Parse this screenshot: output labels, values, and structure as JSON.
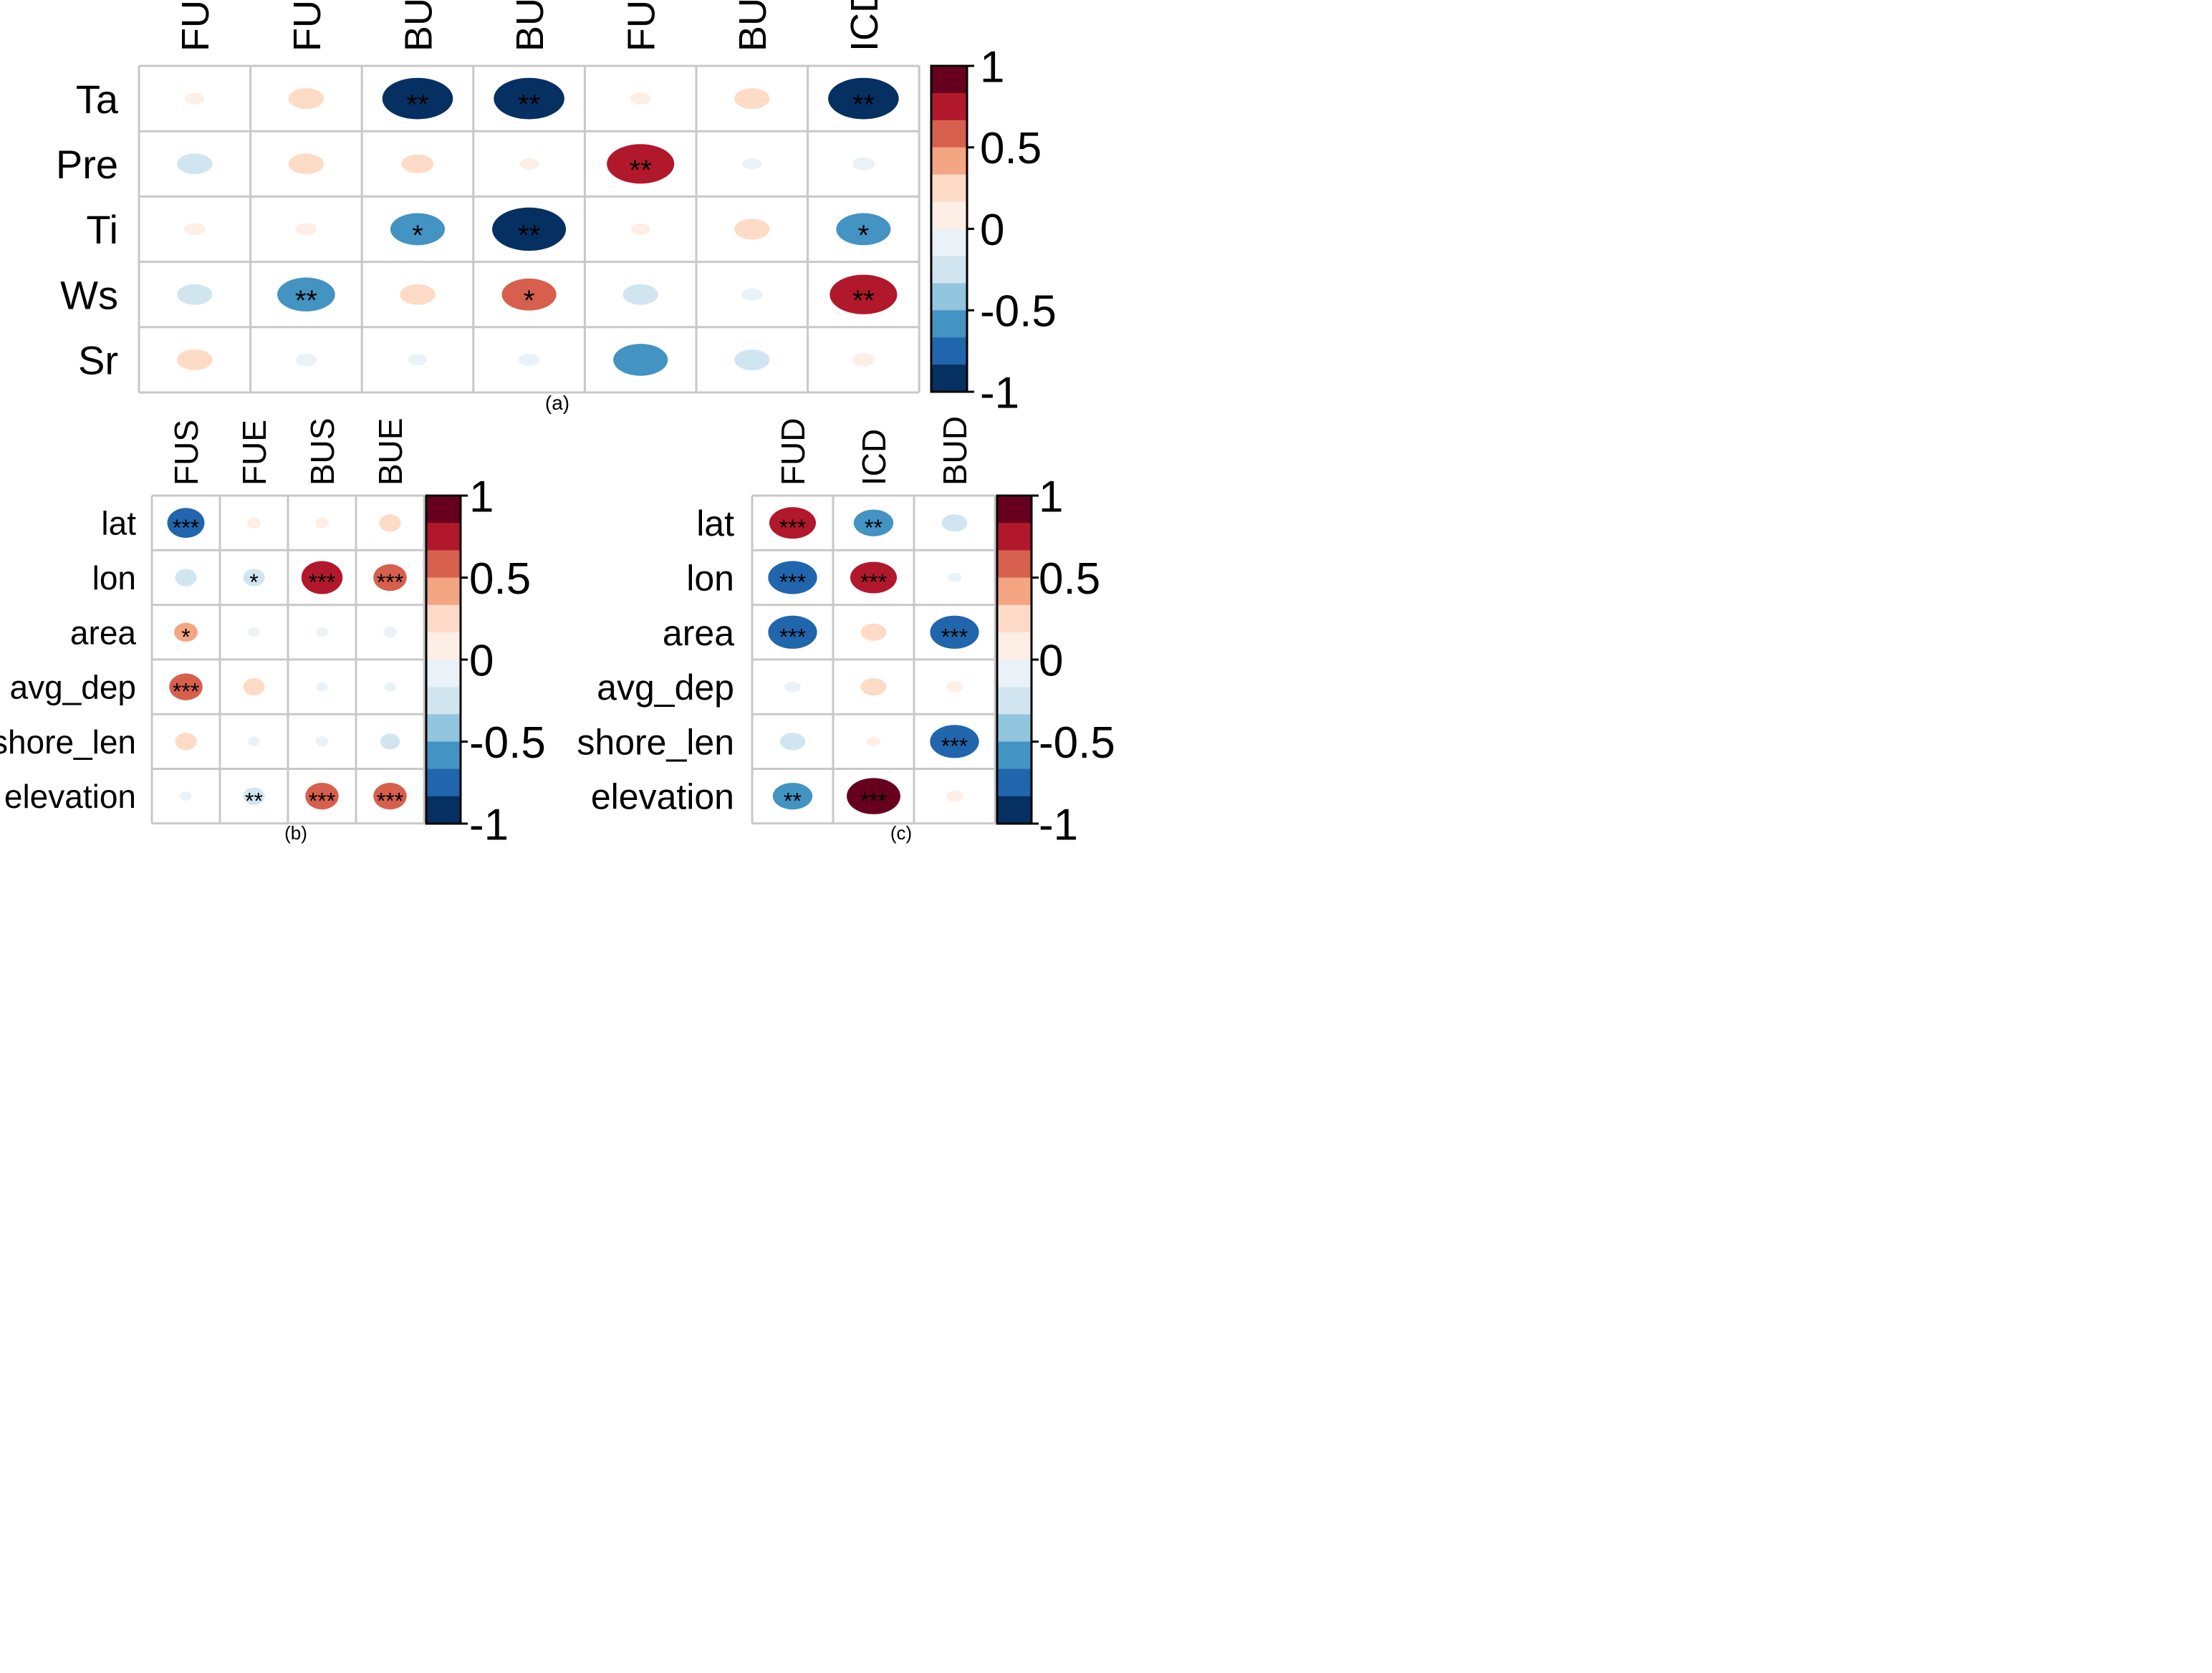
{
  "chart_data": [
    {
      "type": "heatmap",
      "subtype": "correlation-ellipse",
      "caption": "(a)",
      "columns": [
        "FUS",
        "FUE",
        "BUS",
        "BUE",
        "FUD",
        "BUD",
        "ICD"
      ],
      "rows": [
        "Ta",
        "Pre",
        "Ti",
        "Ws",
        "Sr"
      ],
      "values": [
        [
          0.05,
          0.3,
          -0.85,
          -0.85,
          0.07,
          0.3,
          -0.85
        ],
        [
          -0.3,
          0.3,
          0.25,
          0.05,
          0.8,
          -0.05,
          -0.1
        ],
        [
          0.08,
          0.08,
          -0.6,
          -0.9,
          0.05,
          0.3,
          -0.6
        ],
        [
          -0.3,
          -0.65,
          0.3,
          0.6,
          -0.3,
          -0.08,
          0.8
        ],
        [
          0.3,
          -0.08,
          -0.05,
          -0.08,
          -0.6,
          -0.3,
          0.1
        ]
      ],
      "significance": [
        [
          "",
          "",
          "**",
          "**",
          "",
          "",
          "**"
        ],
        [
          "",
          "",
          "",
          "",
          "**",
          "",
          ""
        ],
        [
          "",
          "",
          "*",
          "**",
          "",
          "",
          "*"
        ],
        [
          "",
          "**",
          "",
          "*",
          "",
          "",
          "**"
        ],
        [
          "",
          "",
          "",
          "",
          "",
          "",
          ""
        ]
      ],
      "colorbar": {
        "range": [
          -1,
          1
        ],
        "tick_labels": [
          "1",
          "0.5",
          "0",
          "-0.5",
          "-1"
        ]
      }
    },
    {
      "type": "heatmap",
      "subtype": "correlation-ellipse",
      "caption": "(b)",
      "columns": [
        "FUS",
        "FUE",
        "BUS",
        "BUE"
      ],
      "rows": [
        "lat",
        "lon",
        "area",
        "avg_dep",
        "shore_len",
        "elevation"
      ],
      "values": [
        [
          -0.7,
          0.1,
          0.08,
          0.3
        ],
        [
          -0.3,
          -0.3,
          0.8,
          0.6
        ],
        [
          0.35,
          -0.05,
          -0.05,
          -0.1
        ],
        [
          0.6,
          0.3,
          -0.05,
          -0.05
        ],
        [
          0.3,
          -0.05,
          -0.08,
          -0.25
        ],
        [
          -0.05,
          -0.3,
          0.6,
          0.6
        ]
      ],
      "significance": [
        [
          "***",
          "",
          "",
          ""
        ],
        [
          "",
          "*",
          "***",
          "***"
        ],
        [
          "*",
          "",
          "",
          ""
        ],
        [
          "***",
          "",
          "",
          ""
        ],
        [
          "",
          "",
          "",
          ""
        ],
        [
          "",
          "**",
          "***",
          "***"
        ]
      ],
      "colorbar": {
        "range": [
          -1,
          1
        ],
        "tick_labels": [
          "1",
          "0.5",
          "0",
          "-0.5",
          "-1"
        ]
      }
    },
    {
      "type": "heatmap",
      "subtype": "correlation-ellipse",
      "caption": "(c)",
      "columns": [
        "FUD",
        "ICD",
        "BUD"
      ],
      "rows": [
        "lat",
        "lon",
        "area",
        "avg_dep",
        "shore_len",
        "elevation"
      ],
      "values": [
        [
          0.75,
          -0.6,
          -0.3
        ],
        [
          -0.8,
          0.75,
          -0.05
        ],
        [
          -0.8,
          0.3,
          -0.8
        ],
        [
          -0.1,
          0.3,
          0.1
        ],
        [
          -0.3,
          0.05,
          -0.8
        ],
        [
          -0.6,
          0.9,
          0.1
        ]
      ],
      "significance": [
        [
          "***",
          "**",
          ""
        ],
        [
          "***",
          "***",
          ""
        ],
        [
          "***",
          "",
          "***"
        ],
        [
          "",
          "",
          ""
        ],
        [
          "",
          "",
          "***"
        ],
        [
          "**",
          "***",
          ""
        ]
      ],
      "colorbar": {
        "range": [
          -1,
          1
        ],
        "tick_labels": [
          "1",
          "0.5",
          "0",
          "-0.5",
          "-1"
        ]
      }
    }
  ],
  "palette": {
    "colorbar_bins_top_to_bottom": [
      "#67001f",
      "#b2182b",
      "#d6604d",
      "#f4a582",
      "#fddbc7",
      "#fdeee6",
      "#eaf2f7",
      "#d1e5f0",
      "#92c5de",
      "#4393c3",
      "#2166ac",
      "#053061"
    ],
    "grid": "#c8c8c8"
  }
}
